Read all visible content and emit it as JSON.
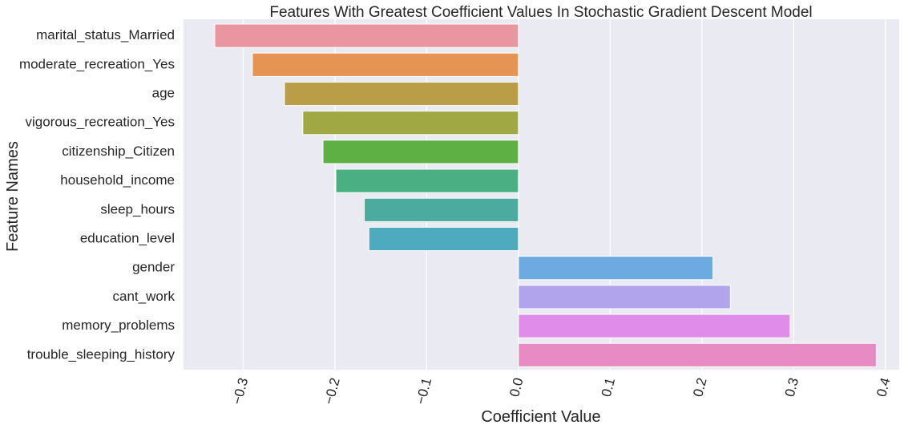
{
  "chart_data": {
    "type": "bar",
    "orientation": "horizontal",
    "title": "Features With Greatest Coefficient Values In Stochastic Gradient Descent Model",
    "xlabel": "Coefficient Value",
    "ylabel": "Feature Names",
    "xlim": [
      -0.365,
      0.415
    ],
    "grid": true,
    "xticks": [
      -0.3,
      -0.2,
      -0.1,
      0.0,
      0.1,
      0.2,
      0.3,
      0.4
    ],
    "xtick_labels": [
      "−0.3",
      "−0.2",
      "−0.1",
      "0.0",
      "0.1",
      "0.2",
      "0.3",
      "0.4"
    ],
    "xtick_rotation": -75,
    "categories": [
      "marital_status_Married",
      "moderate_recreation_Yes",
      "age",
      "vigorous_recreation_Yes",
      "citizenship_Citizen",
      "household_income",
      "sleep_hours",
      "education_level",
      "gender",
      "cant_work",
      "memory_problems",
      "trouble_sleeping_history"
    ],
    "values": [
      -0.331,
      -0.29,
      -0.255,
      -0.235,
      -0.213,
      -0.199,
      -0.168,
      -0.163,
      0.212,
      0.231,
      0.296,
      0.39
    ],
    "colors": [
      "#ea96a1",
      "#e59454",
      "#ba9d47",
      "#9fa843",
      "#5fb044",
      "#4aaf83",
      "#4aab9e",
      "#4eaabf",
      "#6daae2",
      "#b2a4ec",
      "#e08cea",
      "#e88bc4"
    ]
  }
}
